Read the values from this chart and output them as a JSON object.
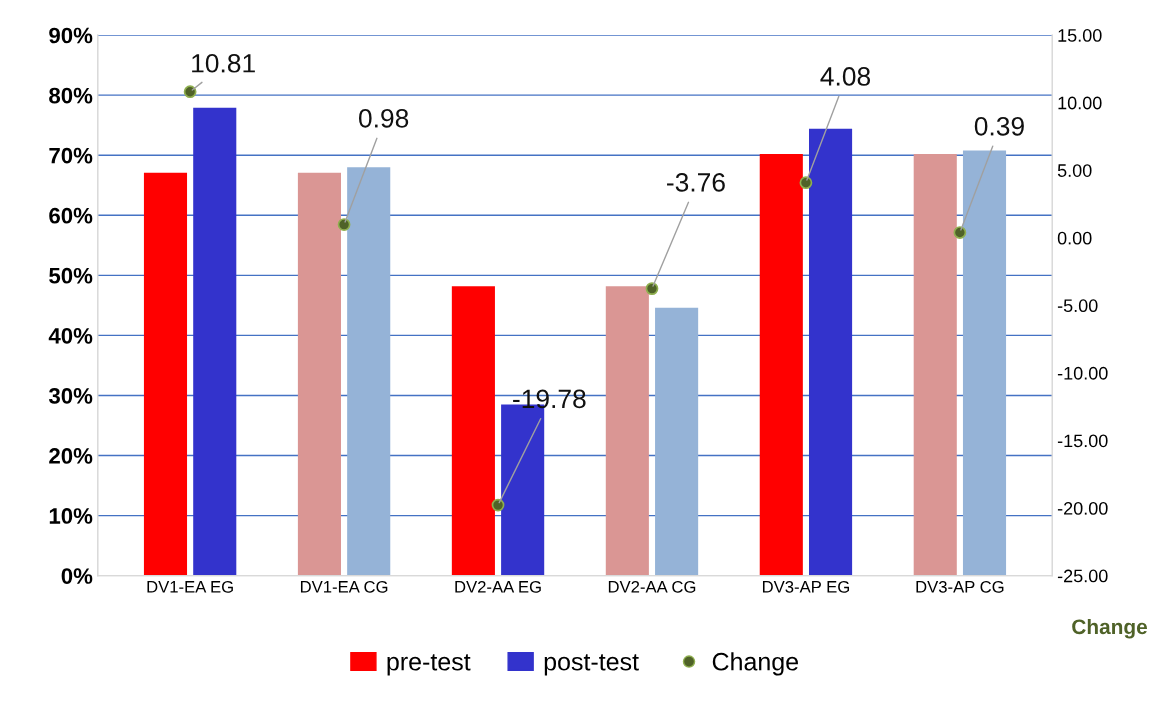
{
  "chart_data": {
    "type": "bar",
    "categories": [
      "DV1-EA EG",
      "DV1-EA CG",
      "DV2-AA EG",
      "DV2-AA CG",
      "DV3-AP EG",
      "DV3-AP CG"
    ],
    "series": [
      {
        "name": "pre-test",
        "color": "#ff0000",
        "colors": [
          "#ff0000",
          "#da9694",
          "#ff0000",
          "#da9694",
          "#ff0000",
          "#da9694"
        ],
        "values": [
          67.1,
          67.1,
          48.2,
          48.2,
          70.2,
          70.2
        ]
      },
      {
        "name": "post-test",
        "color": "#3333cc",
        "colors": [
          "#3333cc",
          "#95b3d7",
          "#3333cc",
          "#95b3d7",
          "#3333cc",
          "#95b3d7"
        ],
        "values": [
          77.9,
          68.0,
          28.5,
          44.6,
          74.4,
          70.8
        ]
      },
      {
        "name": "Change",
        "type": "scatter",
        "axis": "y2",
        "color": "#4f6228",
        "marker": "circle",
        "values": [
          10.81,
          0.98,
          -19.78,
          -3.76,
          4.08,
          0.39
        ],
        "value_labels": [
          "10.81",
          "0.98",
          "-19.78",
          "-3.76",
          "4.08",
          "0.39"
        ]
      }
    ],
    "ylim": [
      0,
      90
    ],
    "yticks": [
      {
        "value": 0,
        "label": "0%"
      },
      {
        "value": 10,
        "label": "10%"
      },
      {
        "value": 20,
        "label": "20%"
      },
      {
        "value": 30,
        "label": "30%"
      },
      {
        "value": 40,
        "label": "40%"
      },
      {
        "value": 50,
        "label": "50%"
      },
      {
        "value": 60,
        "label": "60%"
      },
      {
        "value": 70,
        "label": "70%"
      },
      {
        "value": 80,
        "label": "80%"
      },
      {
        "value": 90,
        "label": "90%"
      }
    ],
    "y2lim": [
      -25,
      15
    ],
    "y2ticks": [
      {
        "value": -25,
        "label": "-25.00"
      },
      {
        "value": -20,
        "label": "-20.00"
      },
      {
        "value": -15,
        "label": "-15.00"
      },
      {
        "value": -10,
        "label": "-10.00"
      },
      {
        "value": -5,
        "label": "-5.00"
      },
      {
        "value": 0,
        "label": "0.00"
      },
      {
        "value": 5,
        "label": "5.00"
      },
      {
        "value": 10,
        "label": "10.00"
      },
      {
        "value": 15,
        "label": "15.00"
      }
    ],
    "y2label": "Change",
    "grid": "y",
    "legend": "bottom"
  }
}
